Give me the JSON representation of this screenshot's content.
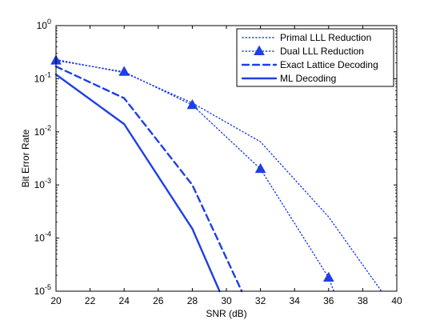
{
  "chart_data": {
    "type": "line",
    "title": "",
    "xlabel": "SNR (dB)",
    "ylabel": "Bit Error Rate",
    "xlim": [
      20,
      40
    ],
    "ylim": [
      1e-05,
      1
    ],
    "yscale": "log",
    "grid": false,
    "legend_position": "top-right",
    "x_ticks": [
      20,
      22,
      24,
      26,
      28,
      30,
      32,
      34,
      36,
      38,
      40
    ],
    "x_tick_labels": [
      "20",
      "22",
      "24",
      "26",
      "28",
      "30",
      "32",
      "34",
      "36",
      "38",
      "40"
    ],
    "y_ticks": [
      1e-05,
      0.0001,
      0.001,
      0.01,
      0.1,
      1
    ],
    "y_tick_exponents": [
      "-5",
      "-4",
      "-3",
      "-2",
      "-1",
      "0"
    ],
    "y_tick_base": "10",
    "color": "#1f3fe6",
    "series": [
      {
        "name": "Primal LLL Reduction",
        "style": "dotted",
        "marker": "none",
        "x": [
          20,
          24,
          28,
          32,
          36,
          39.1
        ],
        "y": [
          0.23,
          0.13,
          0.035,
          0.0065,
          0.00025,
          1e-05
        ]
      },
      {
        "name": "Dual LLL Reduction",
        "style": "dotted",
        "marker": "triangle",
        "x": [
          20,
          24,
          28,
          32,
          36,
          36.3
        ],
        "y": [
          0.22,
          0.135,
          0.032,
          0.002,
          1.8e-05,
          1e-05
        ]
      },
      {
        "name": "Exact Lattice Decoding",
        "style": "dashed",
        "marker": "none",
        "x": [
          20,
          24,
          28,
          30.9
        ],
        "y": [
          0.17,
          0.043,
          0.001,
          1e-05
        ]
      },
      {
        "name": "ML Decoding",
        "style": "solid",
        "marker": "none",
        "x": [
          20,
          24,
          28,
          29.6
        ],
        "y": [
          0.12,
          0.014,
          0.00015,
          1e-05
        ]
      }
    ]
  }
}
